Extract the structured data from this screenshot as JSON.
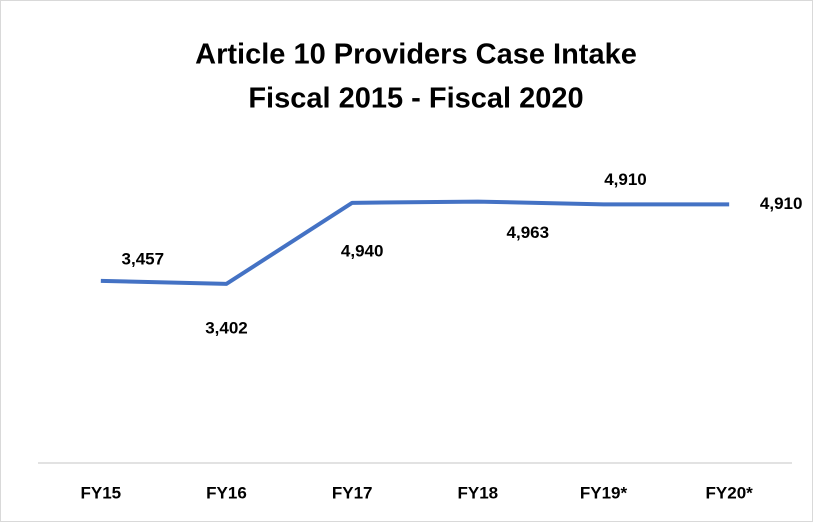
{
  "chart_data": {
    "type": "line",
    "title": "Article 10 Providers Case Intake",
    "subtitle": "Fiscal 2015 - Fiscal 2020",
    "categories": [
      "FY15",
      "FY16",
      "FY17",
      "FY18",
      "FY19*",
      "FY20*"
    ],
    "series": [
      {
        "name": "Case Intake",
        "color": "#4472c4",
        "values": [
          3457,
          3402,
          4940,
          4963,
          4910,
          4910
        ],
        "value_labels": [
          "3,457",
          "3,402",
          "4,940",
          "4,963",
          "4,910",
          "4,910"
        ]
      }
    ],
    "ylim": [
      0,
      6000
    ]
  }
}
